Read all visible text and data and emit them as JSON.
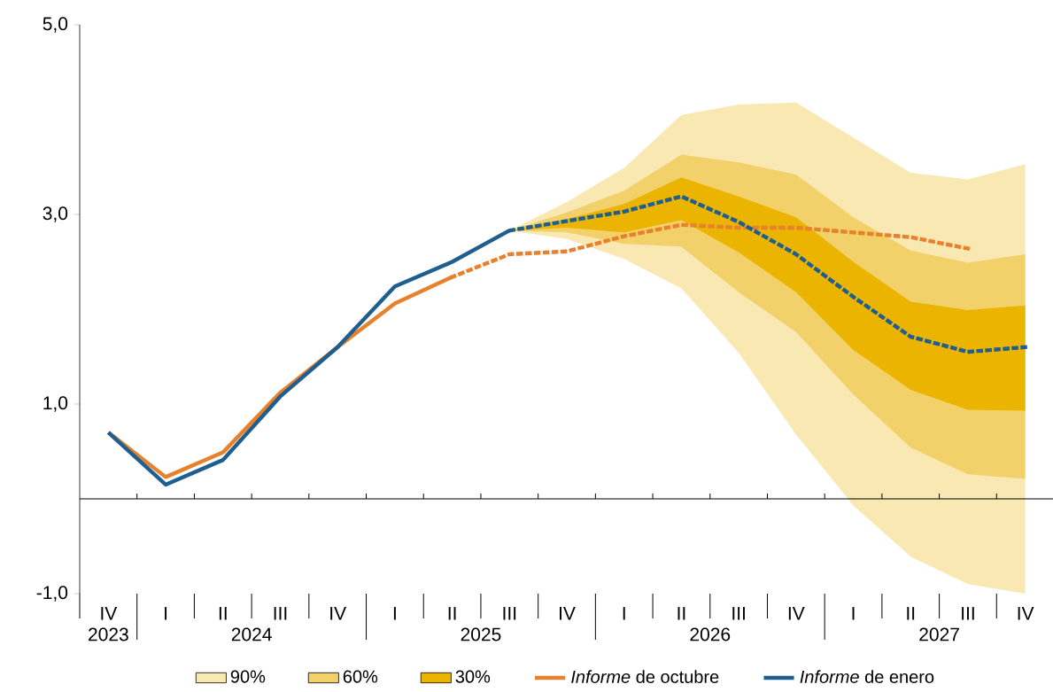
{
  "chart_data": {
    "type": "line",
    "categories": [
      "IV",
      "I",
      "II",
      "III",
      "IV",
      "I",
      "II",
      "III",
      "IV",
      "I",
      "II",
      "III",
      "IV",
      "I",
      "II",
      "III",
      "IV"
    ],
    "series": [
      {
        "name": "90%",
        "color": "#f9e8b2",
        "values": [
          null,
          null,
          null,
          null,
          null,
          null,
          null,
          null,
          null,
          null,
          null,
          null,
          null,
          null,
          null,
          null,
          null
        ],
        "upper": [
          null,
          null,
          null,
          null,
          null,
          null,
          null,
          2.83,
          3.13,
          3.49,
          4.05,
          4.16,
          4.18,
          3.81,
          3.44,
          3.37,
          3.53
        ],
        "lower": [
          null,
          null,
          null,
          null,
          null,
          null,
          null,
          2.83,
          2.74,
          2.53,
          2.22,
          1.54,
          0.68,
          -0.07,
          -0.61,
          -0.9,
          -1.0
        ]
      },
      {
        "name": "60%",
        "color": "#f3d16a",
        "values": [
          null,
          null,
          null,
          null,
          null,
          null,
          null,
          null,
          null,
          null,
          null,
          null,
          null,
          null,
          null,
          null,
          null
        ],
        "upper": [
          null,
          null,
          null,
          null,
          null,
          null,
          null,
          2.83,
          3.02,
          3.25,
          3.63,
          3.55,
          3.42,
          2.97,
          2.62,
          2.49,
          2.58
        ],
        "lower": [
          null,
          null,
          null,
          null,
          null,
          null,
          null,
          2.83,
          2.81,
          2.69,
          2.66,
          2.18,
          1.76,
          1.1,
          0.54,
          0.26,
          0.21
        ]
      },
      {
        "name": "30%",
        "color": "#ebb400",
        "values": [
          null,
          null,
          null,
          null,
          null,
          null,
          null,
          null,
          null,
          null,
          null,
          null,
          null,
          null,
          null,
          null,
          null
        ],
        "upper": [
          null,
          null,
          null,
          null,
          null,
          null,
          null,
          2.83,
          2.95,
          3.11,
          3.39,
          3.19,
          2.97,
          2.5,
          2.08,
          1.99,
          2.04
        ],
        "lower": [
          null,
          null,
          null,
          null,
          null,
          null,
          null,
          2.83,
          2.86,
          2.81,
          2.94,
          2.6,
          2.18,
          1.57,
          1.15,
          0.94,
          0.93
        ]
      },
      {
        "name": "*Informe* de octubre",
        "type": "line",
        "color": "#e8812b",
        "line_style": "solid",
        "values": [
          0.7,
          0.23,
          0.49,
          1.12,
          1.6,
          2.06,
          2.34,
          null,
          null,
          null,
          null,
          null,
          null,
          null,
          null,
          null,
          null
        ]
      },
      {
        "type": "line",
        "color": "#e8812b",
        "line_style": "dotted",
        "values": [
          null,
          null,
          null,
          null,
          null,
          null,
          2.34,
          2.58,
          2.61,
          2.77,
          2.89,
          2.86,
          2.86,
          2.81,
          2.76,
          2.64,
          null
        ]
      },
      {
        "name": "*Informe* de enero",
        "type": "line",
        "color": "#1f5f8f",
        "line_style": "solid",
        "values": [
          0.7,
          0.15,
          0.41,
          1.08,
          1.6,
          2.24,
          2.5,
          2.83,
          null,
          null,
          null,
          null,
          null,
          null,
          null,
          null,
          null
        ]
      },
      {
        "type": "line",
        "color": "#1f5f8f",
        "line_style": "dotted",
        "values": [
          null,
          null,
          null,
          null,
          null,
          null,
          null,
          2.83,
          2.93,
          3.03,
          3.19,
          2.92,
          2.58,
          2.13,
          1.71,
          1.55,
          1.6
        ]
      }
    ],
    "ylim": [
      -1,
      5
    ],
    "yticks": [
      {
        "value": -1,
        "label": "-1,0"
      },
      {
        "value": 1,
        "label": "1,0"
      },
      {
        "value": 3,
        "label": "3,0"
      },
      {
        "value": 5,
        "label": "5,0"
      }
    ],
    "ref_lines": [
      {
        "axis": "y",
        "value": 0
      }
    ],
    "annotations": [
      "2023",
      "2024",
      "2025",
      "2026",
      "2027"
    ],
    "legend": "bottom"
  }
}
